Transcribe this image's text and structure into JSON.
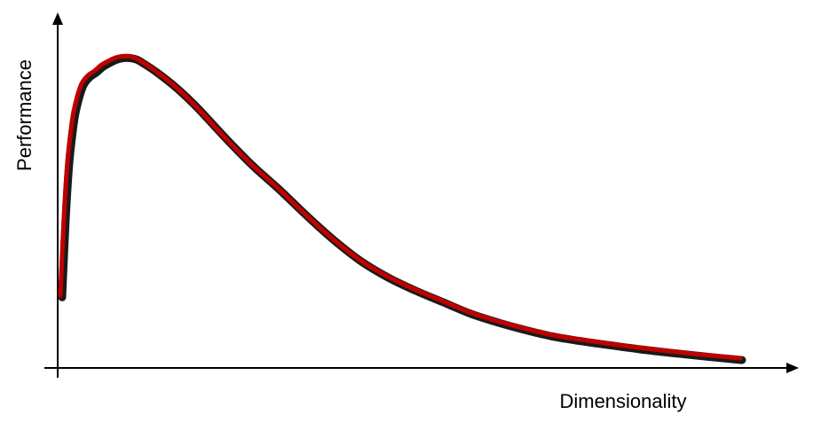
{
  "chart_data": {
    "type": "line",
    "title": "",
    "xlabel": "Dimensionality",
    "ylabel": "Performance",
    "grid": false,
    "legend": "none",
    "xlim": [
      0,
      100
    ],
    "ylim": [
      0,
      100
    ],
    "colors": {
      "curve": "#c00000",
      "curve_shadow": "#1a1a1a",
      "axis": "#000000",
      "text": "#000000"
    },
    "series": [
      {
        "x": [
          0,
          0.5,
          1,
          1.5,
          2,
          3,
          4,
          5,
          6,
          7,
          8,
          9,
          10,
          11,
          12,
          14,
          17,
          20,
          24,
          28,
          32,
          36,
          40,
          44,
          48,
          52,
          56,
          60,
          64,
          68,
          72,
          76,
          80,
          85,
          90,
          95,
          100
        ],
        "y": [
          22,
          45,
          62,
          72,
          79,
          86.5,
          89.5,
          91,
          92.8,
          94,
          95,
          95.5,
          95.5,
          95,
          93.8,
          91,
          86,
          80,
          71,
          62.5,
          55,
          47,
          39.5,
          33,
          28,
          24,
          20.5,
          17,
          14.3,
          12,
          10,
          8.6,
          7.4,
          6,
          4.8,
          3.7,
          2.7
        ]
      }
    ]
  }
}
